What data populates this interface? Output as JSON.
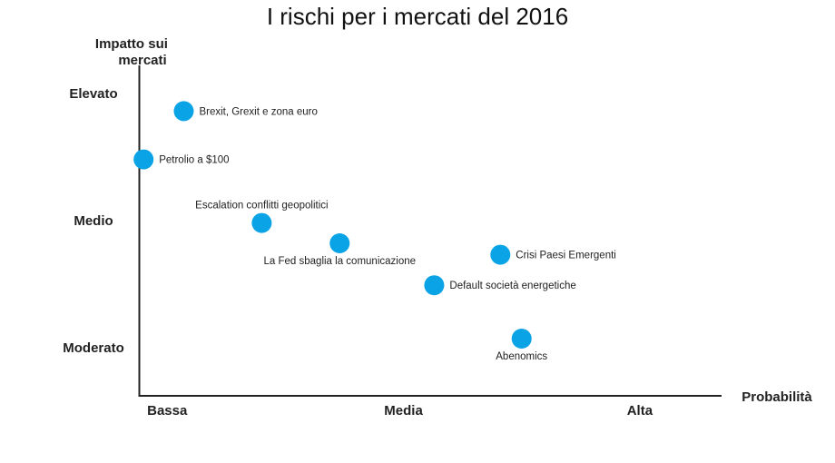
{
  "chart_data": {
    "type": "scatter",
    "title": "I rischi per i mercati del 2016",
    "xlabel": "Probabilità",
    "ylabel": [
      "Impatto sui",
      "mercati"
    ],
    "x_ticks": [
      {
        "value": 1,
        "label": "Bassa"
      },
      {
        "value": 2,
        "label": "Media"
      },
      {
        "value": 3,
        "label": "Alta"
      }
    ],
    "y_ticks": [
      {
        "value": 1,
        "label": "Moderato"
      },
      {
        "value": 2,
        "label": "Medio"
      },
      {
        "value": 3,
        "label": "Elevato"
      }
    ],
    "xlim": [
      0.88,
      3.35
    ],
    "ylim": [
      0.62,
      3.22
    ],
    "color": "#0AA4E6",
    "points": [
      {
        "name": "Brexit, Grexit e zona euro",
        "x": 1.07,
        "y": 2.86,
        "label_pos": "right"
      },
      {
        "name": "Petrolio a $100",
        "x": 0.9,
        "y": 2.48,
        "label_pos": "right"
      },
      {
        "name": "Escalation conflitti geopolitici",
        "x": 1.4,
        "y": 1.98,
        "label_pos": "above"
      },
      {
        "name": "La Fed sbaglia la comunicazione",
        "x": 1.73,
        "y": 1.82,
        "label_pos": "below"
      },
      {
        "name": "Crisi Paesi Emergenti",
        "x": 2.41,
        "y": 1.73,
        "label_pos": "right"
      },
      {
        "name": "Default società energetiche",
        "x": 2.13,
        "y": 1.49,
        "label_pos": "right"
      },
      {
        "name": "Abenomics",
        "x": 2.5,
        "y": 1.07,
        "label_pos": "below"
      }
    ],
    "grid": false
  }
}
